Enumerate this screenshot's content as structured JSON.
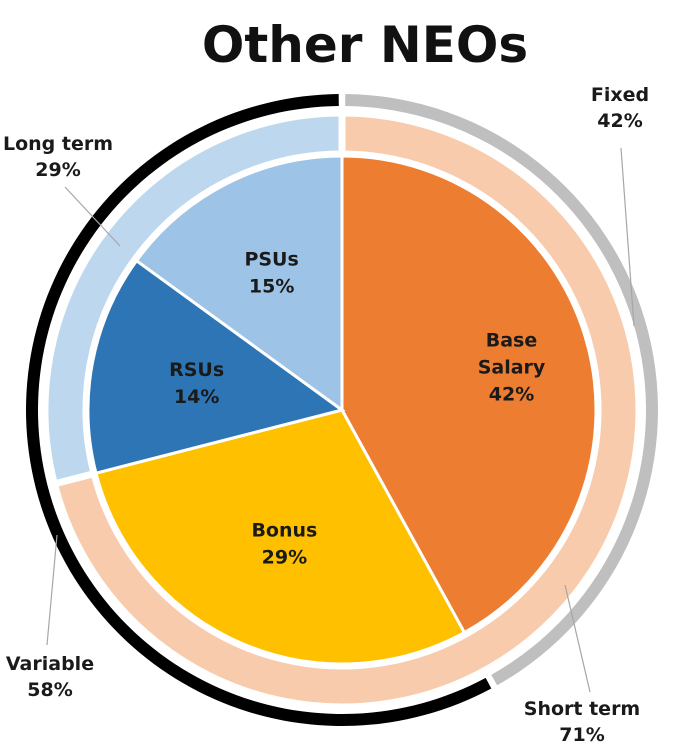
{
  "chart_data": {
    "type": "pie",
    "title": "Other NEOs",
    "slices": [
      {
        "label": [
          "Base",
          "Salary"
        ],
        "value": 42,
        "display": "42%",
        "color": "#ED7D31"
      },
      {
        "label": [
          "Bonus"
        ],
        "value": 29,
        "display": "29%",
        "color": "#FFC000"
      },
      {
        "label": [
          "RSUs"
        ],
        "value": 14,
        "display": "14%",
        "color": "#2E75B6"
      },
      {
        "label": [
          "PSUs"
        ],
        "value": 15,
        "display": "15%",
        "color": "#9DC3E6"
      }
    ],
    "term_ring": [
      {
        "name": "Short term",
        "value": 71,
        "display": "71%",
        "color": "#F8CBAD"
      },
      {
        "name": "Long term",
        "value": 29,
        "display": "29%",
        "color": "#BDD7EE"
      }
    ],
    "pay_ring": [
      {
        "name": "Fixed",
        "value": 42,
        "display": "42%",
        "color": "#BFBFBF"
      },
      {
        "name": "Variable",
        "value": 58,
        "display": "58%",
        "color": "#000000"
      }
    ]
  }
}
